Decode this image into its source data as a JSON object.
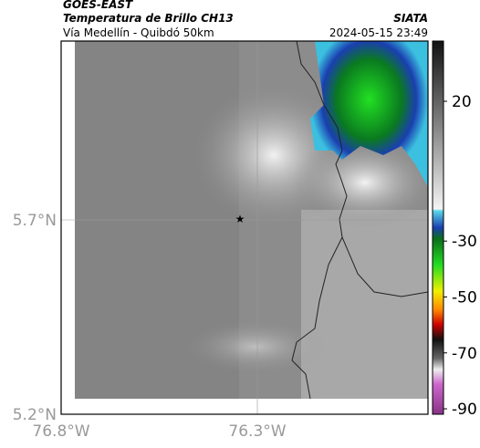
{
  "header": {
    "satellite": "GOES-EAST",
    "product": "Temperatura de Brillo CH13",
    "region": "Vía Medellín - Quibdó 50km",
    "brand": "SIATA",
    "timestamp": "2024-05-15 23:49"
  },
  "map": {
    "lat_labels": [
      "5.7°N",
      "5.2°N"
    ],
    "lon_labels": [
      "76.8°W",
      "76.3°W"
    ]
  },
  "colorbar": {
    "ticks": [
      20,
      -30,
      -50,
      -70,
      -90
    ]
  }
}
